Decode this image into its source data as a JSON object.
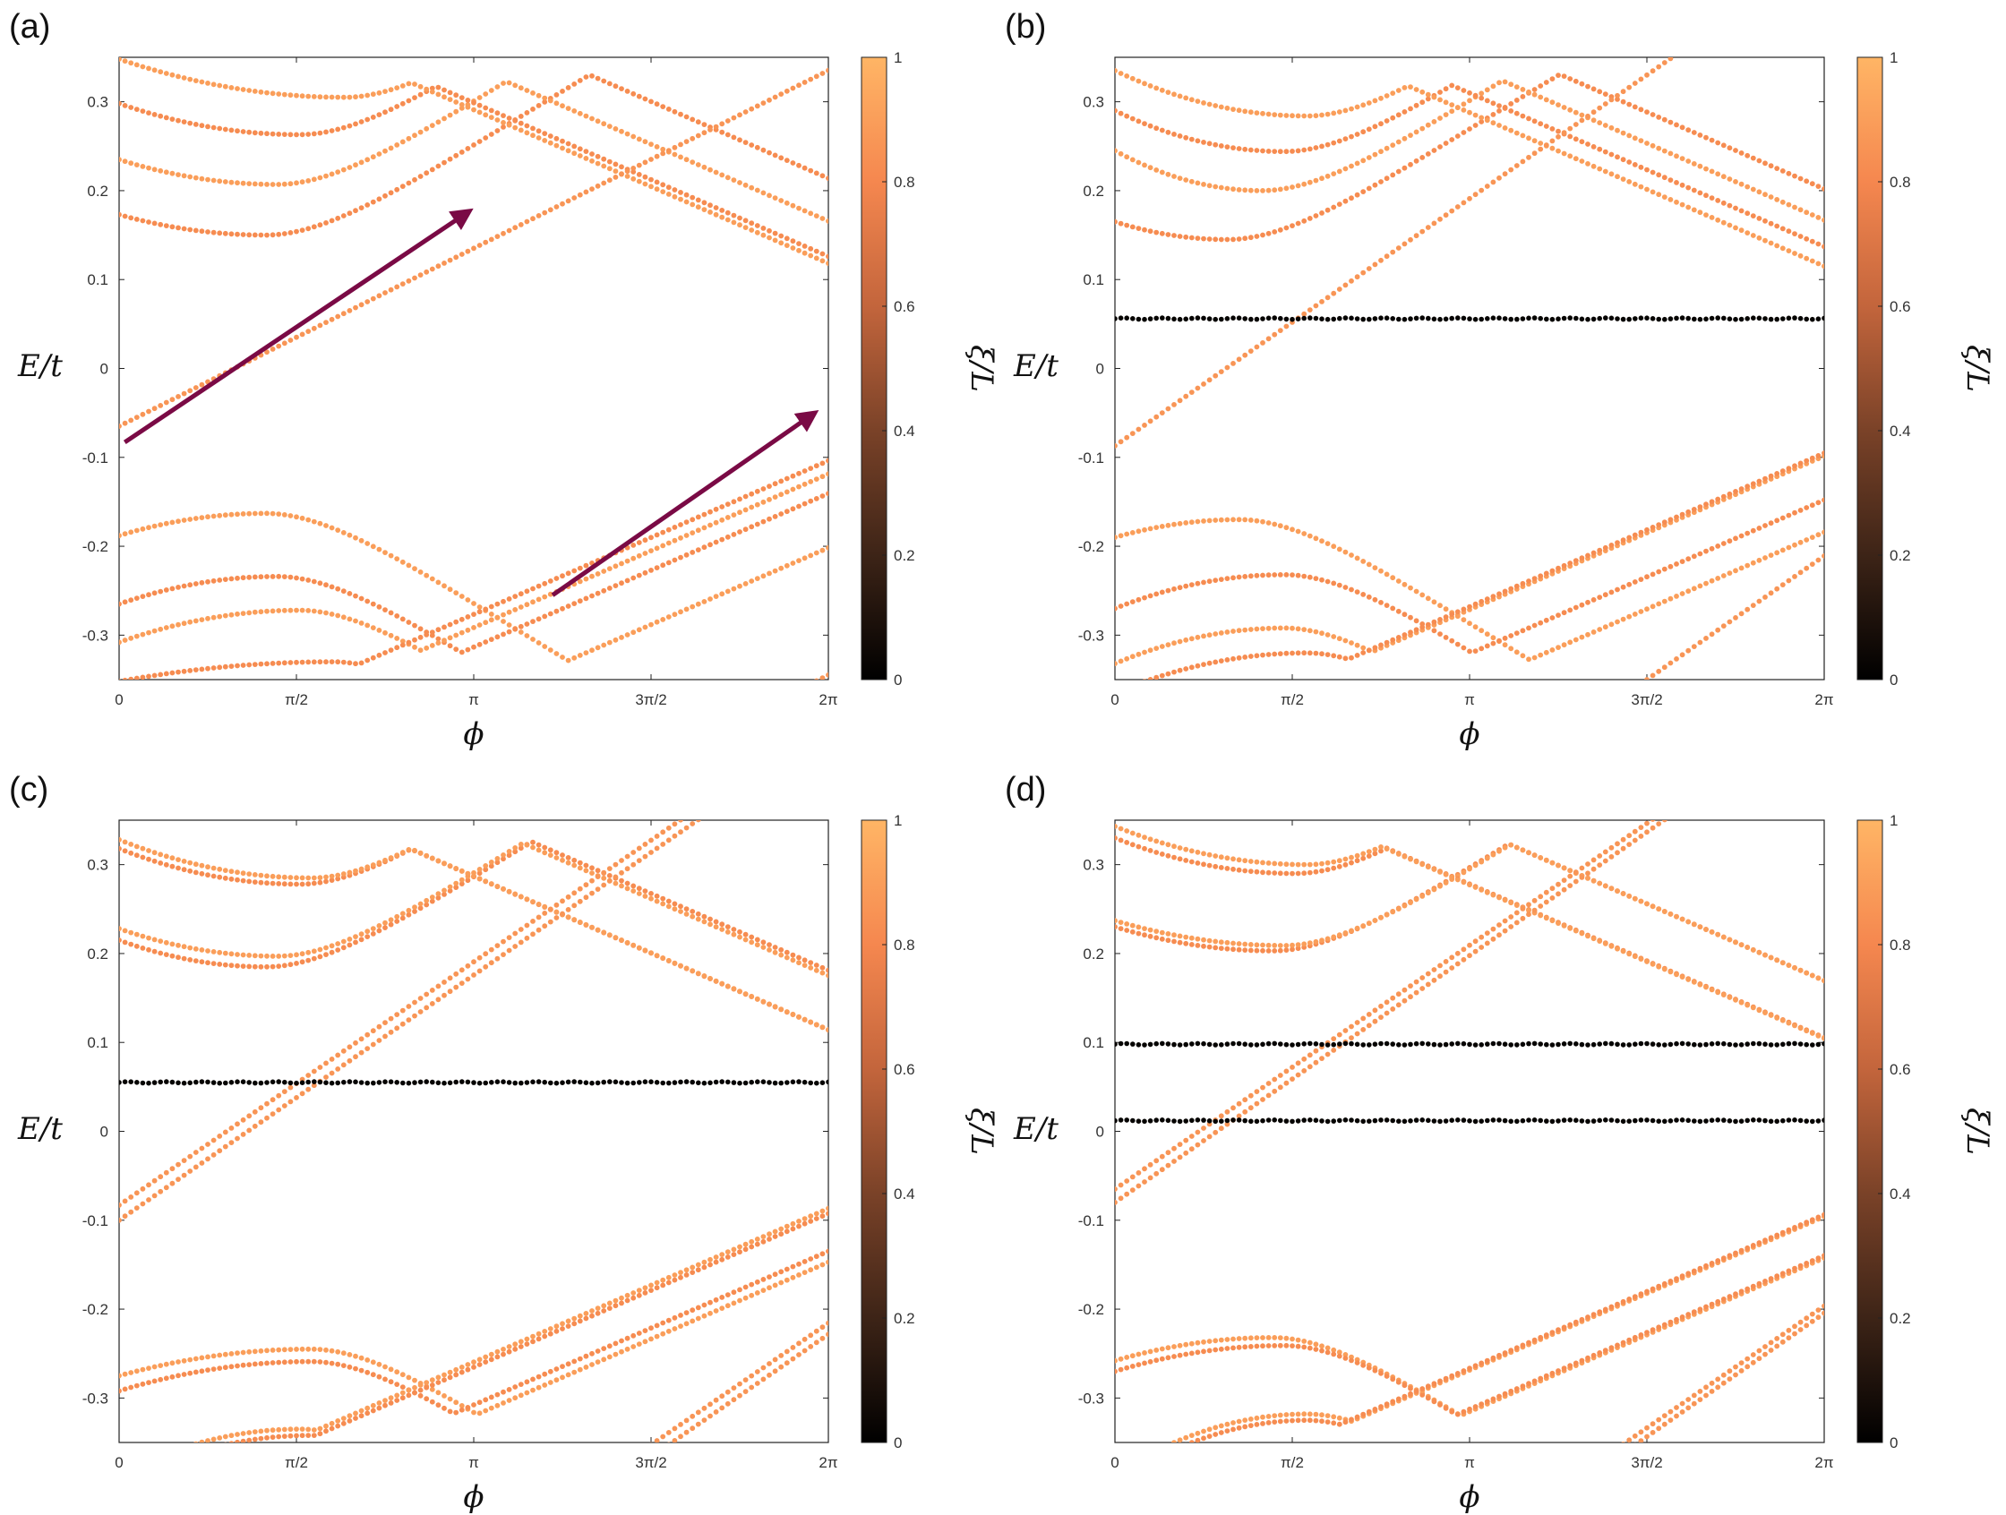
{
  "figure": {
    "shared_axes": {
      "x_label": "ϕ",
      "y_label": "E/t",
      "x_ticks": [
        {
          "value": 0,
          "label": "0"
        },
        {
          "value": 1.5708,
          "label": "π/2"
        },
        {
          "value": 3.1416,
          "label": "π"
        },
        {
          "value": 4.7124,
          "label": "3π/2"
        },
        {
          "value": 6.2832,
          "label": "2π"
        }
      ],
      "y_ticks": [
        {
          "value": 0.3,
          "label": "0.3"
        },
        {
          "value": 0.2,
          "label": "0.2"
        },
        {
          "value": 0.1,
          "label": "0.1"
        },
        {
          "value": 0,
          "label": "0"
        },
        {
          "value": -0.1,
          "label": "-0.1"
        },
        {
          "value": -0.2,
          "label": "-0.2"
        },
        {
          "value": -0.3,
          "label": "-0.3"
        }
      ],
      "xlim": [
        0,
        6.2832
      ],
      "ylim": [
        -0.35,
        0.35
      ],
      "colorbar": {
        "label": "ξ/L",
        "range": [
          0,
          1
        ],
        "ticks": [
          "0",
          "0.2",
          "0.4",
          "0.6",
          "0.8",
          "1"
        ],
        "colors": [
          "#000000",
          "#3d2417",
          "#7a4228",
          "#c3653c",
          "#f5874f",
          "#ffb565"
        ]
      }
    }
  },
  "chart_data": [
    {
      "panel_label": "(a)",
      "type": "scatter",
      "xlabel": "ϕ",
      "ylabel": "E/t",
      "xlim": [
        0,
        6.2832
      ],
      "ylim": [
        -0.35,
        0.35
      ],
      "upper_bands": [
        {
          "y0": 0.173,
          "min": 0.15,
          "xm": 1.3
        },
        {
          "y0": 0.235,
          "min": 0.207,
          "xm": 1.4
        },
        {
          "y0": 0.298,
          "min": 0.263,
          "xm": 1.6
        },
        {
          "y0": 0.348,
          "min": 0.305,
          "xm": 2.0
        }
      ],
      "lower_bands": [
        {
          "y0": -0.188,
          "max": -0.163,
          "xm": 1.3
        },
        {
          "y0": -0.265,
          "max": -0.234,
          "xm": 1.4
        },
        {
          "y0": -0.308,
          "max": -0.272,
          "xm": 1.6
        },
        {
          "y0": -0.352,
          "max": -0.33,
          "xm": 1.9
        }
      ],
      "chiral_modes": [
        {
          "y_at_0": -0.065,
          "slope": 0.0637
        }
      ],
      "flat_bands": [],
      "arrows": [
        {
          "from": [
            0.05,
            -0.083
          ],
          "to": [
            3.08,
            0.175
          ]
        },
        {
          "from": [
            3.84,
            -0.255
          ],
          "to": [
            6.14,
            -0.052
          ]
        }
      ]
    },
    {
      "panel_label": "(b)",
      "type": "scatter",
      "xlabel": "ϕ",
      "ylabel": "E/t",
      "xlim": [
        0,
        6.2832
      ],
      "ylim": [
        -0.35,
        0.35
      ],
      "upper_bands": [
        {
          "y0": 0.165,
          "min": 0.145,
          "xm": 1.0
        },
        {
          "y0": 0.245,
          "min": 0.2,
          "xm": 1.3
        },
        {
          "y0": 0.29,
          "min": 0.244,
          "xm": 1.5
        },
        {
          "y0": 0.335,
          "min": 0.284,
          "xm": 1.7
        }
      ],
      "lower_bands": [
        {
          "y0": -0.19,
          "max": -0.17,
          "xm": 1.1
        },
        {
          "y0": -0.27,
          "max": -0.232,
          "xm": 1.5
        },
        {
          "y0": -0.332,
          "max": -0.292,
          "xm": 1.5
        },
        {
          "y0": -0.365,
          "max": -0.32,
          "xm": 1.7
        }
      ],
      "chiral_modes": [
        {
          "y_at_0": -0.087,
          "slope": 0.0885
        }
      ],
      "flat_bands": [
        {
          "E": 0.056
        }
      ],
      "arrows": []
    },
    {
      "panel_label": "(c)",
      "type": "scatter",
      "xlabel": "ϕ",
      "ylabel": "E/t",
      "xlim": [
        0,
        6.2832
      ],
      "ylim": [
        -0.35,
        0.35
      ],
      "upper_bands": [
        {
          "y0": 0.215,
          "min": 0.185,
          "xm": 1.3
        },
        {
          "y0": 0.228,
          "min": 0.197,
          "xm": 1.4
        },
        {
          "y0": 0.318,
          "min": 0.278,
          "xm": 1.6
        },
        {
          "y0": 0.328,
          "min": 0.285,
          "xm": 1.7
        }
      ],
      "lower_bands": [
        {
          "y0": -0.275,
          "max": -0.245,
          "xm": 1.7
        },
        {
          "y0": -0.292,
          "max": -0.259,
          "xm": 1.7
        },
        {
          "y0": -0.385,
          "max": -0.335,
          "xm": 1.6
        },
        {
          "y0": -0.395,
          "max": -0.342,
          "xm": 1.7
        }
      ],
      "chiral_modes": [
        {
          "y_at_0": -0.083,
          "slope": 0.0871
        },
        {
          "y_at_0": -0.1,
          "slope": 0.0878
        }
      ],
      "flat_bands": [
        {
          "E": 0.055
        }
      ],
      "arrows": []
    },
    {
      "panel_label": "(d)",
      "type": "scatter",
      "xlabel": "ϕ",
      "ylabel": "E/t",
      "xlim": [
        0,
        6.2832
      ],
      "ylim": [
        -0.35,
        0.35
      ],
      "upper_bands": [
        {
          "y0": 0.23,
          "min": 0.203,
          "xm": 1.4
        },
        {
          "y0": 0.237,
          "min": 0.209,
          "xm": 1.5
        },
        {
          "y0": 0.33,
          "min": 0.29,
          "xm": 1.6
        },
        {
          "y0": 0.343,
          "min": 0.3,
          "xm": 1.7
        }
      ],
      "lower_bands": [
        {
          "y0": -0.258,
          "max": -0.232,
          "xm": 1.4
        },
        {
          "y0": -0.27,
          "max": -0.241,
          "xm": 1.5
        },
        {
          "y0": -0.385,
          "max": -0.318,
          "xm": 1.7
        },
        {
          "y0": -0.395,
          "max": -0.325,
          "xm": 1.7
        }
      ],
      "chiral_modes": [
        {
          "y_at_0": -0.065,
          "slope": 0.0873
        },
        {
          "y_at_0": -0.08,
          "slope": 0.0884
        }
      ],
      "flat_bands": [
        {
          "E": 0.098
        },
        {
          "E": 0.012
        }
      ],
      "arrows": []
    }
  ]
}
